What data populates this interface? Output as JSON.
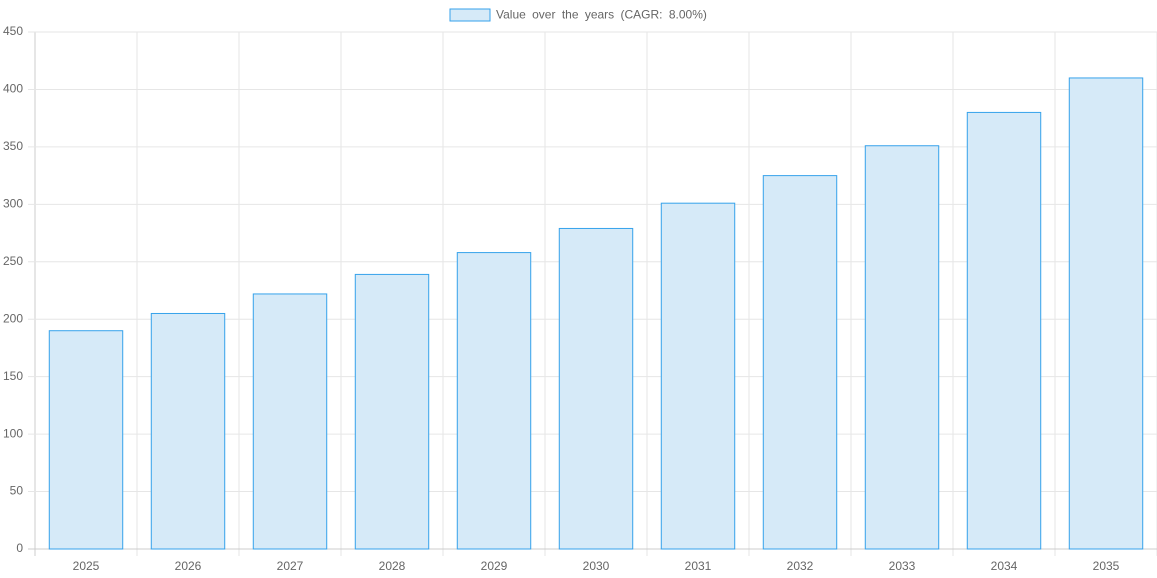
{
  "chart_data": {
    "type": "bar",
    "categories": [
      "2025",
      "2026",
      "2027",
      "2028",
      "2029",
      "2030",
      "2031",
      "2032",
      "2033",
      "2034",
      "2035"
    ],
    "series": [
      {
        "name": "Value over the years (CAGR: 8.00%)",
        "color": "#36a2eb",
        "fill": "#d6eaf8",
        "values": [
          190,
          205,
          222,
          239,
          258,
          279,
          301,
          325,
          351,
          380,
          410
        ]
      }
    ],
    "ylim": [
      0,
      450
    ],
    "yticks": [
      0,
      50,
      100,
      150,
      200,
      250,
      300,
      350,
      400,
      450
    ],
    "grid": true,
    "legend": "top"
  }
}
